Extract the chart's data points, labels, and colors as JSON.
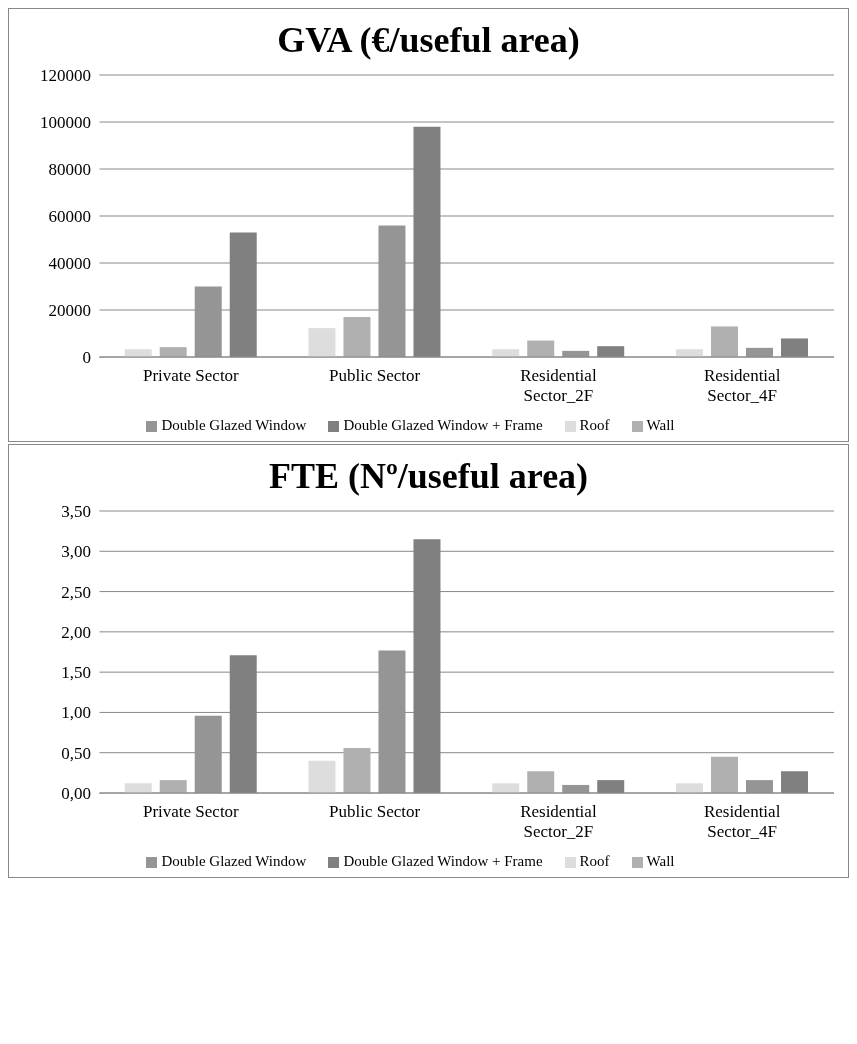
{
  "chart_data": [
    {
      "type": "bar",
      "title": "GVA (€/useful area)",
      "categories": [
        "Private Sector",
        "Public Sector",
        "Residential Sector_2F",
        "Residential Sector_4F"
      ],
      "series": [
        {
          "name": "Roof",
          "color": "#dddddd",
          "values": [
            3300,
            12300,
            3300,
            3300
          ]
        },
        {
          "name": "Wall",
          "color": "#b0b0b0",
          "values": [
            4200,
            17000,
            7000,
            13000
          ]
        },
        {
          "name": "Double Glazed  Window",
          "color": "#959595",
          "values": [
            30000,
            56000,
            2600,
            3900
          ]
        },
        {
          "name": "Double Glazed  Window + Frame",
          "color": "#808080",
          "values": [
            53000,
            98000,
            4600,
            7900
          ]
        }
      ],
      "ylim": [
        0,
        120000
      ],
      "yticks": [
        0,
        20000,
        40000,
        60000,
        80000,
        100000,
        120000
      ],
      "grid": "y",
      "legend": "bottom"
    },
    {
      "type": "bar",
      "title": "FTE (Nº/useful area)",
      "categories": [
        "Private Sector",
        "Public Sector",
        "Residential Sector_2F",
        "Residential Sector_4F"
      ],
      "series": [
        {
          "name": "Roof",
          "color": "#dddddd",
          "values": [
            0.12,
            0.4,
            0.12,
            0.12
          ]
        },
        {
          "name": "Wall",
          "color": "#b0b0b0",
          "values": [
            0.16,
            0.56,
            0.27,
            0.45
          ]
        },
        {
          "name": "Double Glazed  Window",
          "color": "#959595",
          "values": [
            0.96,
            1.77,
            0.1,
            0.16
          ]
        },
        {
          "name": "Double Glazed  Window + Frame",
          "color": "#808080",
          "values": [
            1.71,
            3.15,
            0.16,
            0.27
          ]
        }
      ],
      "ylim": [
        0,
        3.5
      ],
      "yticks": [
        {
          "value": 0,
          "label": "0,00"
        },
        {
          "value": 0.5,
          "label": "0,50"
        },
        {
          "value": 1,
          "label": "1,00"
        },
        {
          "value": 1.5,
          "label": "1,50"
        },
        {
          "value": 2,
          "label": "2,00"
        },
        {
          "value": 2.5,
          "label": "2,50"
        },
        {
          "value": 3,
          "label": "3,00"
        },
        {
          "value": 3.5,
          "label": "3,50"
        }
      ],
      "grid": "y",
      "legend": "bottom"
    }
  ]
}
